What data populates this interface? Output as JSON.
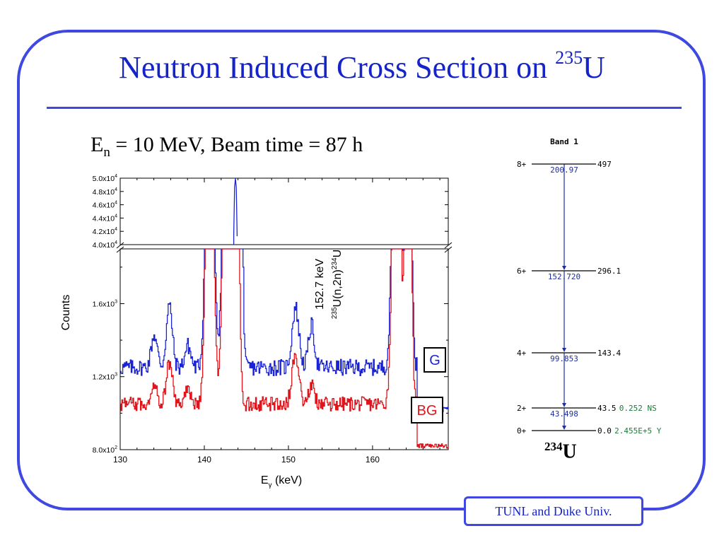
{
  "slide": {
    "title_main": "Neutron Induced Cross Section on ",
    "title_sup": "235",
    "title_tail": "U",
    "subtitle_E": "E",
    "subtitle_sub": "n",
    "subtitle_rest": " = 10 MeV, Beam time = 87 h",
    "footer": "TUNL and Duke Univ.",
    "nucleus_sup": "234",
    "nucleus_sym": "U"
  },
  "colors": {
    "frame": "#3f48e0",
    "title": "#1424c8",
    "G": "#1a24d6",
    "BG": "#e0141a",
    "level_blue": "#1f2f9c",
    "level_green": "#1e7a3a"
  },
  "chart_data": [
    {
      "type": "line",
      "xlabel": "E",
      "xlabel_sub": "γ",
      "xlabel_unit": " (keV)",
      "ylabel": "Counts",
      "xlim": [
        130,
        169
      ],
      "ylim_lower": [
        800,
        1900
      ],
      "ylim_upper": [
        40000,
        50000
      ],
      "x_ticks": [
        130,
        140,
        150,
        160
      ],
      "y_ticks_lower": [
        {
          "label_base": "8.0x10",
          "label_exp": "2",
          "value": 800
        },
        {
          "label_base": "1.2x10",
          "label_exp": "3",
          "value": 1200
        },
        {
          "label_base": "1.6x10",
          "label_exp": "3",
          "value": 1600
        }
      ],
      "y_ticks_upper": [
        {
          "label_base": "4.0x10",
          "label_exp": "4",
          "value": 40000
        },
        {
          "label_base": "4.2x10",
          "label_exp": "4",
          "value": 42000
        },
        {
          "label_base": "4.4x10",
          "label_exp": "4",
          "value": 44000
        },
        {
          "label_base": "4.6x10",
          "label_exp": "4",
          "value": 46000
        },
        {
          "label_base": "4.8x10",
          "label_exp": "4",
          "value": 48000
        },
        {
          "label_base": "5.0x10",
          "label_exp": "4",
          "value": 50000
        }
      ],
      "annotation_energy": "152.7 keV",
      "annotation_reaction_sup1": "235",
      "annotation_reaction_mid": "U(n,2n)",
      "annotation_reaction_sup2": "234",
      "annotation_reaction_tail": "U",
      "series": [
        {
          "name": "G",
          "color": "#1a24d6",
          "baseline": 1250,
          "noise": 45,
          "peaks": [
            [
              134.0,
              180,
              0.35
            ],
            [
              135.8,
              340,
              0.35
            ],
            [
              138.0,
              120,
              0.35
            ],
            [
              140.6,
              2200,
              0.4
            ],
            [
              142.6,
              2000,
              0.4
            ],
            [
              143.7,
              50000,
              0.3
            ],
            [
              150.8,
              330,
              0.4
            ],
            [
              152.7,
              230,
              0.35
            ],
            [
              162.8,
              2500,
              0.4
            ],
            [
              164.2,
              2500,
              0.3
            ]
          ],
          "tail_value": 1020
        },
        {
          "name": "BG",
          "color": "#e0141a",
          "baseline": 1050,
          "noise": 40,
          "peaks": [
            [
              134.0,
              120,
              0.35
            ],
            [
              135.8,
              230,
              0.35
            ],
            [
              138.0,
              80,
              0.35
            ],
            [
              140.6,
              2200,
              0.4
            ],
            [
              142.6,
              2000,
              0.4
            ],
            [
              143.7,
              2500,
              0.3
            ],
            [
              150.8,
              280,
              0.4
            ],
            [
              152.7,
              100,
              0.35
            ],
            [
              162.8,
              2500,
              0.4
            ],
            [
              164.2,
              2500,
              0.3
            ]
          ],
          "tail_value": 820
        }
      ]
    },
    {
      "type": "level-scheme",
      "band_label": "Band 1",
      "levels": [
        {
          "spin": "8+",
          "energy": "497",
          "gamma": "200.97",
          "extra": ""
        },
        {
          "spin": "6+",
          "energy": "296.1",
          "gamma": "152.720",
          "extra": ""
        },
        {
          "spin": "4+",
          "energy": "143.4",
          "gamma": "99.853",
          "extra": ""
        },
        {
          "spin": "2+",
          "energy": "43.5",
          "gamma": "43.498",
          "extra": "0.252 NS"
        },
        {
          "spin": "0+",
          "energy": "0.0",
          "gamma": "",
          "extra": "2.455E+5 Y"
        }
      ]
    }
  ]
}
